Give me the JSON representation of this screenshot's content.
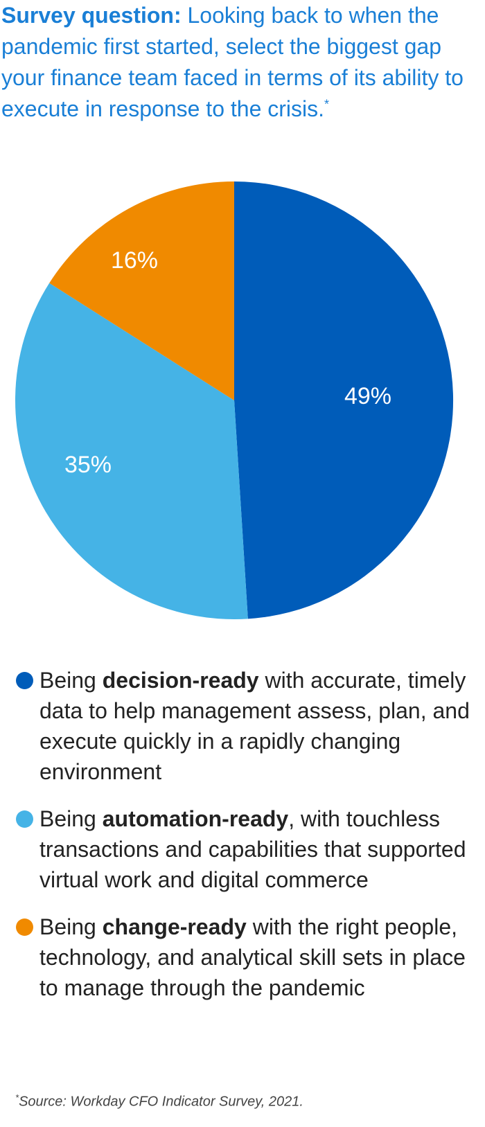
{
  "question": {
    "label": "Survey question:",
    "text": " Looking back to when the pandemic first started, select the biggest gap your finance team faced in terms of its ability to execute in response to the crisis.",
    "footnote_marker": "*"
  },
  "chart_data": {
    "type": "pie",
    "start_angle_deg": 0,
    "direction": "clockwise",
    "slices": [
      {
        "key": "decision",
        "value": 49,
        "label": "49%",
        "color": "#005cb9"
      },
      {
        "key": "automation",
        "value": 35,
        "label": "35%",
        "color": "#45b3e6"
      },
      {
        "key": "change",
        "value": 16,
        "label": "16%",
        "color": "#f08a00"
      }
    ]
  },
  "legend": [
    {
      "color": "#005cb9",
      "pre": "Being ",
      "bold": "decision-ready",
      "post": " with accurate, timely data to help management assess, plan, and execute quickly in a rapidly changing environment"
    },
    {
      "color": "#45b3e6",
      "pre": "Being ",
      "bold": "automation-ready",
      "post": ", with touchless transactions and capabilities that supported virtual work and digital commerce"
    },
    {
      "color": "#f08a00",
      "pre": "Being ",
      "bold": "change-ready",
      "post": " with the right people, technology, and analytical skill sets in place to manage through the pandemic"
    }
  ],
  "source": {
    "marker": "*",
    "text": "Source: Workday CFO Indicator Survey, 2021."
  }
}
